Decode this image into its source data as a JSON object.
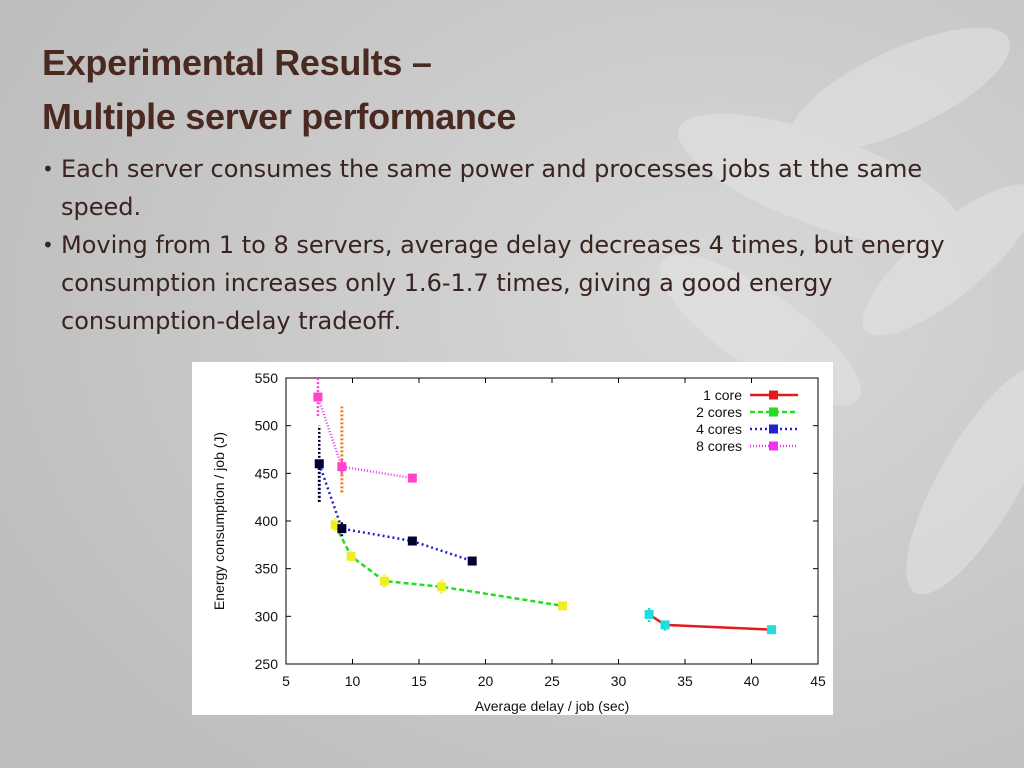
{
  "slide": {
    "title_line1": "Experimental Results –",
    "title_line2": "Multiple server performance",
    "bullets": [
      "Each server consumes the same power and processes jobs at the same speed.",
      "Moving from 1 to 8 servers, average delay decreases 4  times, but energy consumption increases only 1.6-1.7 times, giving a good energy consumption-delay tradeoff."
    ],
    "bullet_symbol": "•"
  },
  "chart_data": {
    "type": "line",
    "xlabel": "Average delay / job (sec)",
    "ylabel": "Energy consumption / job (J)",
    "xlim": [
      5,
      45
    ],
    "ylim": [
      250,
      550
    ],
    "xticks": [
      5,
      10,
      15,
      20,
      25,
      30,
      35,
      40,
      45
    ],
    "yticks": [
      250,
      300,
      350,
      400,
      450,
      500,
      550
    ],
    "legend_position": "top-right",
    "series": [
      {
        "name": "1 core",
        "color": "#e41a1c",
        "marker_color": "#22dddd",
        "dash": "solid",
        "x": [
          32.3,
          33.5,
          41.5
        ],
        "y": [
          302,
          291,
          286
        ],
        "err_y": [
          8,
          6,
          3
        ]
      },
      {
        "name": "2 cores",
        "color": "#22dd22",
        "marker_color": "#eeee22",
        "dash": "5,3",
        "x": [
          8.7,
          9.9,
          12.4,
          16.7,
          25.8
        ],
        "y": [
          396,
          363,
          337,
          331,
          311
        ],
        "err_y": [
          7,
          5,
          7,
          7,
          3
        ]
      },
      {
        "name": "4 cores",
        "color": "#2222cc",
        "marker_color": "#000033",
        "dash": "2,3",
        "x": [
          7.5,
          9.2,
          14.5,
          19.0
        ],
        "y": [
          460,
          392,
          379,
          358
        ],
        "err_y": [
          40,
          8,
          3,
          3
        ]
      },
      {
        "name": "8 cores",
        "color": "#ee33ee",
        "marker_color": "#ff44cc",
        "dash": "1,2",
        "x": [
          7.4,
          9.2,
          14.5
        ],
        "y": [
          530,
          457,
          445
        ],
        "err_y": [
          20,
          8,
          4
        ]
      }
    ],
    "extra_marks": [
      {
        "x": 7.5,
        "y": 440,
        "err_y": 20,
        "color": "#2222cc"
      },
      {
        "x": 9.2,
        "y": 475,
        "err_y": 45,
        "color": "#ee7722"
      }
    ]
  }
}
